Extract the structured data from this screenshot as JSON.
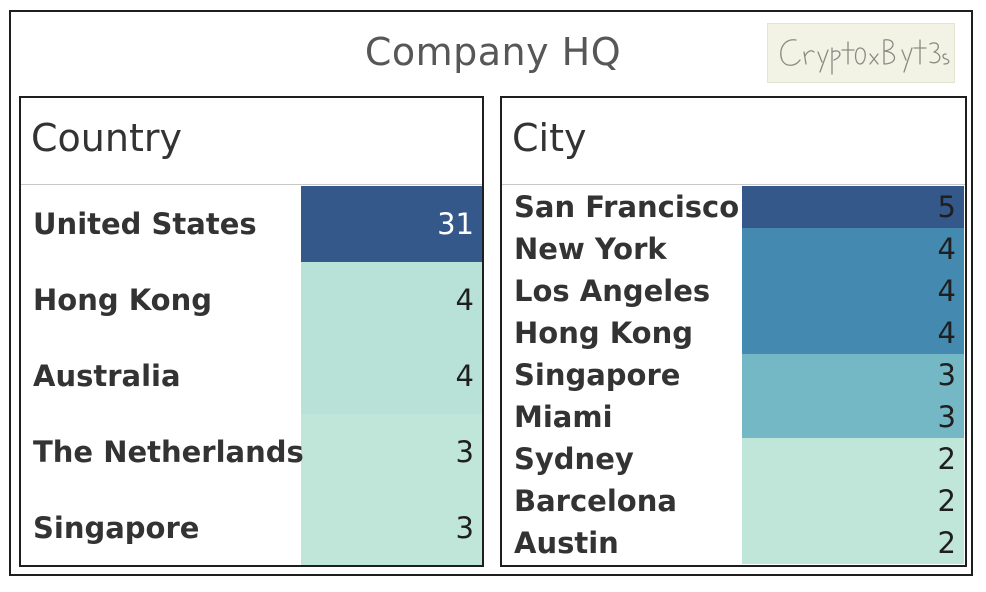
{
  "header": {
    "title": "Company HQ",
    "signature": "Crypt0xByt3s"
  },
  "colors": {
    "darkest": "#35588a",
    "dark": "#4389b0",
    "mid": "#74b8c6",
    "light": "#b8e2d8",
    "lightest": "#c0e6d9"
  },
  "chart_data": [
    {
      "type": "table",
      "title": "Country",
      "rows": [
        {
          "label": "United States",
          "value": 31
        },
        {
          "label": "Hong Kong",
          "value": 4
        },
        {
          "label": "Australia",
          "value": 4
        },
        {
          "label": "The Netherlands",
          "value": 3
        },
        {
          "label": "Singapore",
          "value": 3
        }
      ]
    },
    {
      "type": "table",
      "title": "City",
      "rows": [
        {
          "label": "San Francisco",
          "value": 5
        },
        {
          "label": "New York",
          "value": 4
        },
        {
          "label": "Los Angeles",
          "value": 4
        },
        {
          "label": "Hong Kong",
          "value": 4
        },
        {
          "label": "Singapore",
          "value": 3
        },
        {
          "label": "Miami",
          "value": 3
        },
        {
          "label": "Sydney",
          "value": 2
        },
        {
          "label": "Barcelona",
          "value": 2
        },
        {
          "label": "Austin",
          "value": 2
        }
      ]
    }
  ]
}
